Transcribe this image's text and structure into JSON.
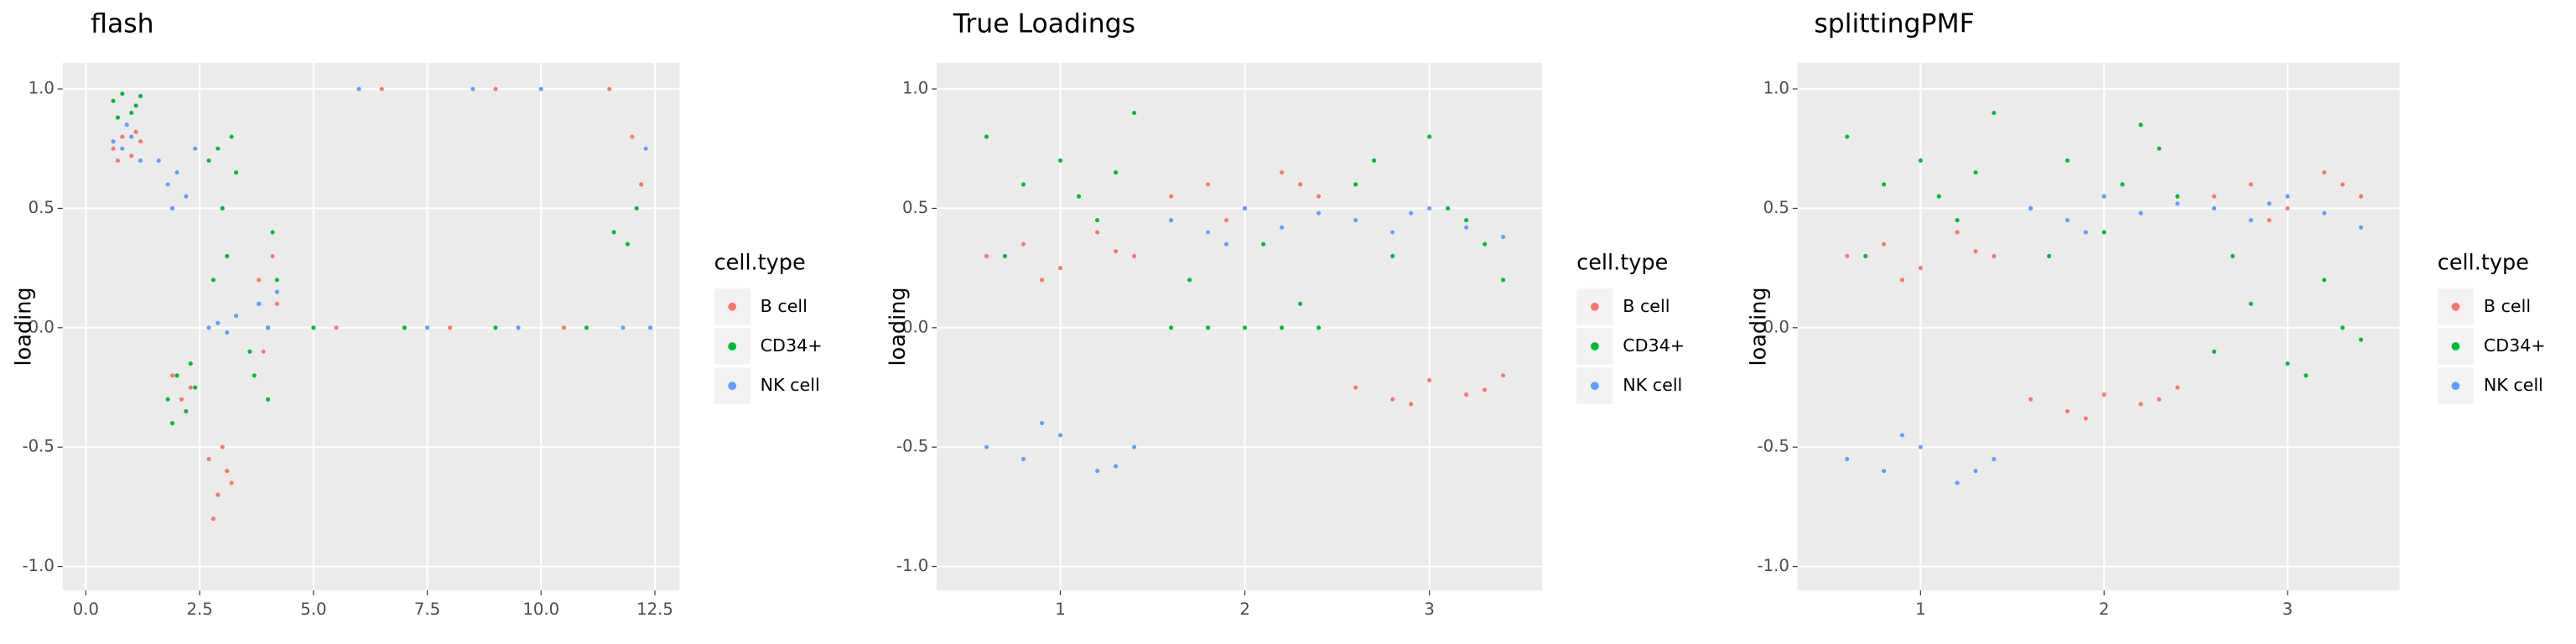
{
  "chart_data": [
    {
      "type": "scatter",
      "title": "flash",
      "y_label": "loading",
      "legend_title": "cell.type",
      "grid": true,
      "xlim": [
        -0.51,
        13.04
      ],
      "ylim": [
        -1.1,
        1.11
      ],
      "xticks": [
        {
          "value": 0,
          "label": "0.0"
        },
        2.5,
        {
          "value": 5,
          "label": "5.0"
        },
        7.5,
        {
          "value": 10,
          "label": "10.0"
        },
        12.5
      ],
      "yticks": [
        {
          "value": 1,
          "label": "1.0"
        },
        0.5,
        {
          "value": 0,
          "label": "0.0"
        },
        -0.5,
        {
          "value": -1,
          "label": "-1.0"
        }
      ],
      "series": [
        {
          "name": "B cell",
          "color": "#F8766D",
          "x": [
            0.6,
            0.8,
            1.0,
            1.2,
            0.7,
            1.1,
            2.7,
            2.9,
            3.1,
            2.8,
            3.0,
            3.2,
            1.9,
            2.1,
            2.3,
            3.8,
            4.0,
            4.2,
            3.9,
            4.1,
            6.5,
            9.0,
            11.5,
            12.0,
            12.2,
            5.5,
            8.0,
            10.5
          ],
          "values": [
            0.75,
            0.8,
            0.72,
            0.78,
            0.7,
            0.82,
            -0.55,
            -0.7,
            -0.6,
            -0.8,
            -0.5,
            -0.65,
            -0.2,
            -0.3,
            -0.25,
            0.2,
            0,
            0.1,
            -0.1,
            0.3,
            1,
            1,
            1,
            0.8,
            0.6,
            0,
            0,
            0
          ]
        },
        {
          "name": "CD34+",
          "color": "#00BA38",
          "x": [
            0.6,
            0.8,
            1.0,
            1.2,
            0.7,
            1.1,
            1.8,
            2.0,
            2.2,
            2.4,
            1.9,
            2.3,
            2.7,
            2.9,
            3.1,
            3.3,
            2.8,
            3.0,
            3.2,
            3.6,
            3.8,
            4.0,
            4.2,
            3.7,
            4.1,
            5.0,
            7.0,
            9.0,
            11.0,
            11.6,
            11.9,
            12.1
          ],
          "values": [
            0.95,
            0.98,
            0.9,
            0.97,
            0.88,
            0.93,
            -0.3,
            -0.2,
            -0.35,
            -0.25,
            -0.4,
            -0.15,
            0.7,
            0.75,
            0.3,
            0.65,
            0.2,
            0.5,
            0.8,
            -0.1,
            0.1,
            -0.3,
            0.2,
            -0.2,
            0.4,
            0,
            0,
            0,
            0,
            0.4,
            0.35,
            0.5
          ]
        },
        {
          "name": "NK cell",
          "color": "#619CFF",
          "x": [
            0.6,
            0.8,
            1.0,
            1.2,
            0.9,
            1.6,
            1.8,
            2.0,
            2.2,
            2.4,
            1.9,
            2.7,
            2.9,
            3.1,
            3.3,
            3.8,
            4.0,
            4.2,
            6.0,
            8.5,
            10.0,
            12.3,
            7.5,
            9.5,
            11.8,
            12.4
          ],
          "values": [
            0.78,
            0.75,
            0.8,
            0.7,
            0.85,
            0.7,
            0.6,
            0.65,
            0.55,
            0.75,
            0.5,
            0,
            0.02,
            -0.02,
            0.05,
            0.1,
            0,
            0.15,
            1,
            1,
            1,
            0.75,
            0,
            0,
            0,
            0
          ]
        }
      ]
    },
    {
      "type": "scatter",
      "title": "True Loadings",
      "y_label": "loading",
      "legend_title": "cell.type",
      "grid": true,
      "xlim": [
        0.33,
        3.61
      ],
      "ylim": [
        -1.1,
        1.11
      ],
      "xticks": [
        1,
        2,
        3
      ],
      "yticks": [
        {
          "value": 1,
          "label": "1.0"
        },
        0.5,
        {
          "value": 0,
          "label": "0.0"
        },
        -0.5,
        {
          "value": -1,
          "label": "-1.0"
        }
      ],
      "series": [
        {
          "name": "B cell",
          "color": "#F8766D",
          "x": [
            0.6,
            0.8,
            1.0,
            1.2,
            1.4,
            0.9,
            1.3,
            1.6,
            1.8,
            2.0,
            2.2,
            2.4,
            1.9,
            2.3,
            2.6,
            2.8,
            3.0,
            3.2,
            3.4,
            2.9,
            3.3
          ],
          "values": [
            0.3,
            0.35,
            0.25,
            0.4,
            0.3,
            0.2,
            0.32,
            0.55,
            0.6,
            0.5,
            0.65,
            0.55,
            0.45,
            0.6,
            -0.25,
            -0.3,
            -0.22,
            -0.28,
            -0.2,
            -0.32,
            -0.26
          ]
        },
        {
          "name": "CD34+",
          "color": "#00BA38",
          "x": [
            0.6,
            0.8,
            1.0,
            1.2,
            1.4,
            0.7,
            1.1,
            1.3,
            1.6,
            1.8,
            2.0,
            2.2,
            2.4,
            1.7,
            2.1,
            2.3,
            2.6,
            2.8,
            3.0,
            3.2,
            3.4,
            2.7,
            3.1,
            3.3
          ],
          "values": [
            0.8,
            0.6,
            0.7,
            0.45,
            0.9,
            0.3,
            0.55,
            0.65,
            0,
            0,
            0,
            0,
            0,
            0.2,
            0.35,
            0.1,
            0.6,
            0.3,
            0.8,
            0.45,
            0.2,
            0.7,
            0.5,
            0.35
          ]
        },
        {
          "name": "NK cell",
          "color": "#619CFF",
          "x": [
            0.6,
            0.8,
            1.0,
            1.2,
            1.4,
            0.9,
            1.3,
            1.6,
            1.8,
            2.0,
            2.2,
            2.4,
            1.9,
            2.6,
            2.8,
            3.0,
            3.2,
            3.4,
            2.9
          ],
          "values": [
            -0.5,
            -0.55,
            -0.45,
            -0.6,
            -0.5,
            -0.4,
            -0.58,
            0.45,
            0.4,
            0.5,
            0.42,
            0.48,
            0.35,
            0.45,
            0.4,
            0.5,
            0.42,
            0.38,
            0.48
          ]
        }
      ]
    },
    {
      "type": "scatter",
      "title": "splittingPMF",
      "y_label": "loading",
      "legend_title": "cell.type",
      "grid": true,
      "xlim": [
        0.33,
        3.61
      ],
      "ylim": [
        -1.1,
        1.11
      ],
      "xticks": [
        1,
        2,
        3
      ],
      "yticks": [
        {
          "value": 1,
          "label": "1.0"
        },
        0.5,
        {
          "value": 0,
          "label": "0.0"
        },
        -0.5,
        {
          "value": -1,
          "label": "-1.0"
        }
      ],
      "series": [
        {
          "name": "B cell",
          "color": "#F8766D",
          "x": [
            0.6,
            0.8,
            1.0,
            1.2,
            1.4,
            0.9,
            1.3,
            1.6,
            1.8,
            2.0,
            2.2,
            2.4,
            1.9,
            2.3,
            2.6,
            2.8,
            3.0,
            3.2,
            3.4,
            2.9,
            3.3
          ],
          "values": [
            0.3,
            0.35,
            0.25,
            0.4,
            0.3,
            0.2,
            0.32,
            -0.3,
            -0.35,
            -0.28,
            -0.32,
            -0.25,
            -0.38,
            -0.3,
            0.55,
            0.6,
            0.5,
            0.65,
            0.55,
            0.45,
            0.6
          ]
        },
        {
          "name": "CD34+",
          "color": "#00BA38",
          "x": [
            0.6,
            0.8,
            1.0,
            1.2,
            1.4,
            0.7,
            1.1,
            1.3,
            1.6,
            1.8,
            2.0,
            2.2,
            2.4,
            1.7,
            2.1,
            2.3,
            2.6,
            2.8,
            3.0,
            3.2,
            3.4,
            2.7,
            3.1,
            3.3
          ],
          "values": [
            0.8,
            0.6,
            0.7,
            0.45,
            0.9,
            0.3,
            0.55,
            0.65,
            0.5,
            0.7,
            0.4,
            0.85,
            0.55,
            0.3,
            0.6,
            0.75,
            -0.1,
            0.1,
            -0.15,
            0.2,
            -0.05,
            0.3,
            -0.2,
            0
          ]
        },
        {
          "name": "NK cell",
          "color": "#619CFF",
          "x": [
            0.6,
            0.8,
            1.0,
            1.2,
            1.4,
            0.9,
            1.3,
            1.6,
            1.8,
            2.0,
            2.2,
            2.4,
            1.9,
            2.6,
            2.8,
            3.0,
            3.2,
            3.4,
            2.9
          ],
          "values": [
            -0.55,
            -0.6,
            -0.5,
            -0.65,
            -0.55,
            -0.45,
            -0.6,
            0.5,
            0.45,
            0.55,
            0.48,
            0.52,
            0.4,
            0.5,
            0.45,
            0.55,
            0.48,
            0.42,
            0.52
          ]
        }
      ]
    }
  ]
}
